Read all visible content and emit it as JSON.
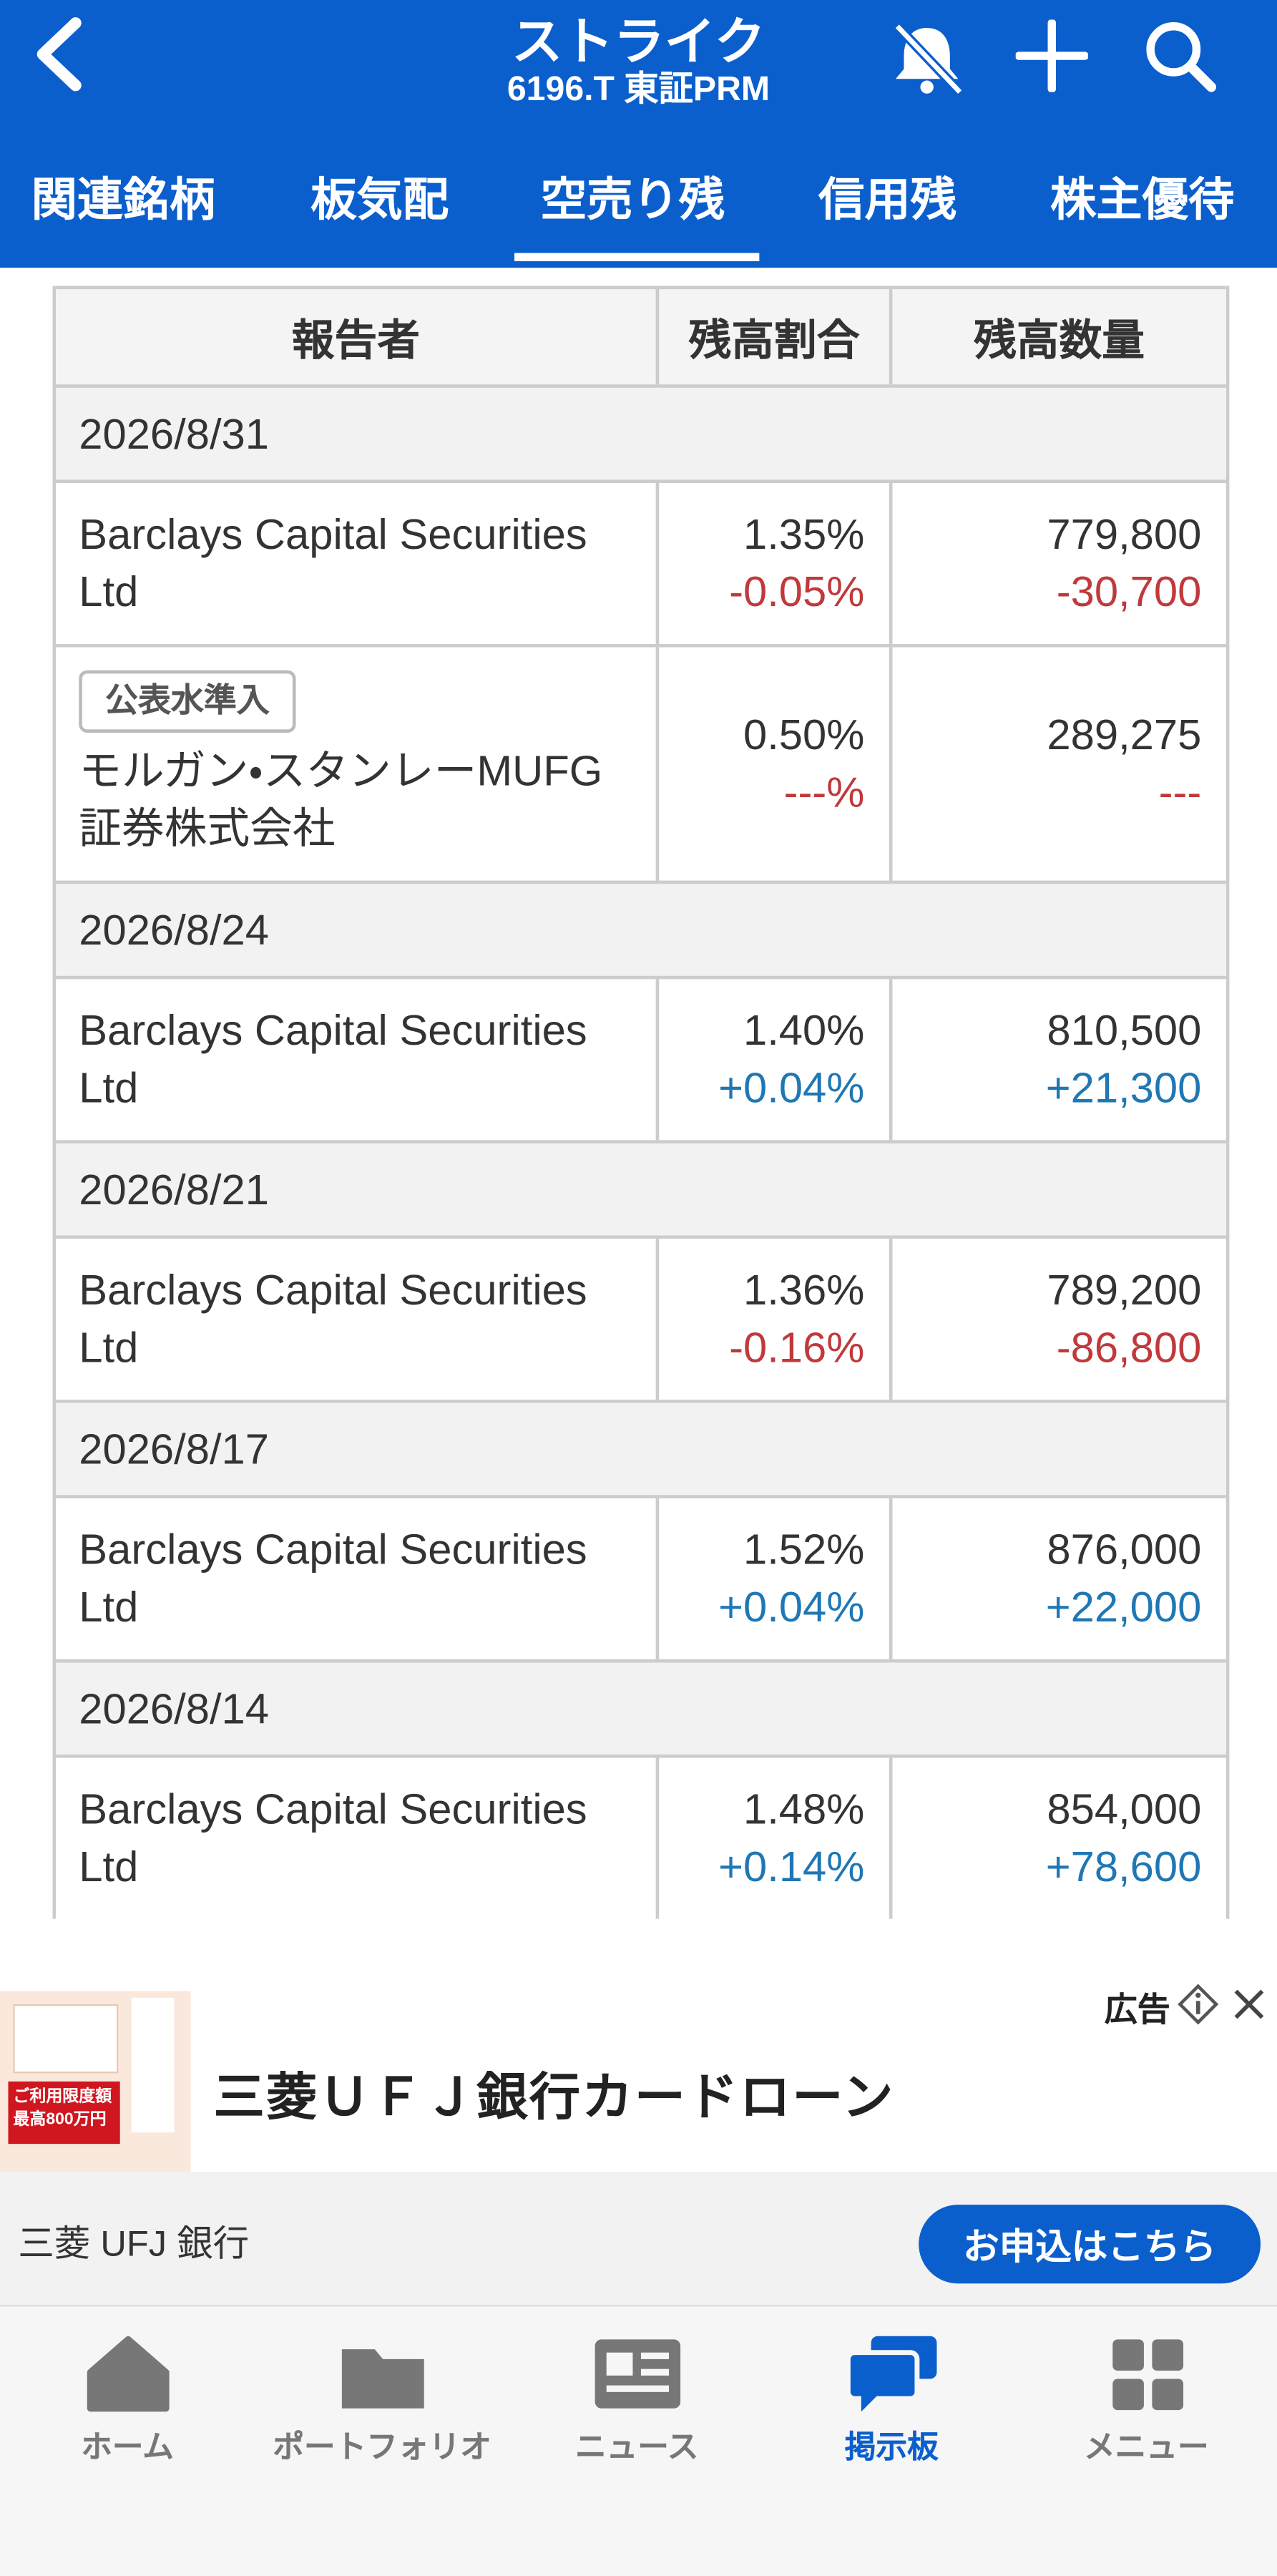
{
  "header": {
    "title": "ストライク",
    "subtitle": "6196.T 東証PRM"
  },
  "tabs": [
    "関連銘柄",
    "板気配",
    "空売り残",
    "信用残",
    "株主優待"
  ],
  "table": {
    "columns": [
      "報告者",
      "残高割合",
      "残高数量"
    ],
    "groups": [
      {
        "date": "2026/8/31",
        "rows": [
          {
            "reporter": "Barclays Capital Securities Ltd",
            "ratio": "1.35%",
            "ratio_change": "-0.05%",
            "quantity": "779,800",
            "quantity_change": "-30,700"
          },
          {
            "badge": "公表水準入",
            "reporter": "モルガン・スタンレーMUFG証券株式会社",
            "ratio": "0.50%",
            "ratio_change": "---%",
            "quantity": "289,275",
            "quantity_change": "---"
          }
        ]
      },
      {
        "date": "2026/8/24",
        "rows": [
          {
            "reporter": "Barclays Capital Securities Ltd",
            "ratio": "1.40%",
            "ratio_change": "+0.04%",
            "quantity": "810,500",
            "quantity_change": "+21,300"
          }
        ]
      },
      {
        "date": "2026/8/21",
        "rows": [
          {
            "reporter": "Barclays Capital Securities Ltd",
            "ratio": "1.36%",
            "ratio_change": "-0.16%",
            "quantity": "789,200",
            "quantity_change": "-86,800"
          }
        ]
      },
      {
        "date": "2026/8/17",
        "rows": [
          {
            "reporter": "Barclays Capital Securities Ltd",
            "ratio": "1.52%",
            "ratio_change": "+0.04%",
            "quantity": "876,000",
            "quantity_change": "+22,000"
          }
        ]
      },
      {
        "date": "2026/8/14",
        "rows": [
          {
            "reporter": "Barclays Capital Securities Ltd",
            "ratio": "1.48%",
            "ratio_change": "+0.14%",
            "quantity": "854,000",
            "quantity_change": "+78,600"
          }
        ]
      }
    ]
  },
  "ad": {
    "tag": "広告",
    "title": "三菱ＵＦＪ銀行カードローン",
    "advertiser": "三菱 UFJ 銀行",
    "button": "お申込はこちら",
    "image_texts": [
      "ご利用限度額",
      "最高800万円"
    ]
  },
  "nav": [
    "ホーム",
    "ポートフォリオ",
    "ニュース",
    "掲示板",
    "メニュー"
  ]
}
